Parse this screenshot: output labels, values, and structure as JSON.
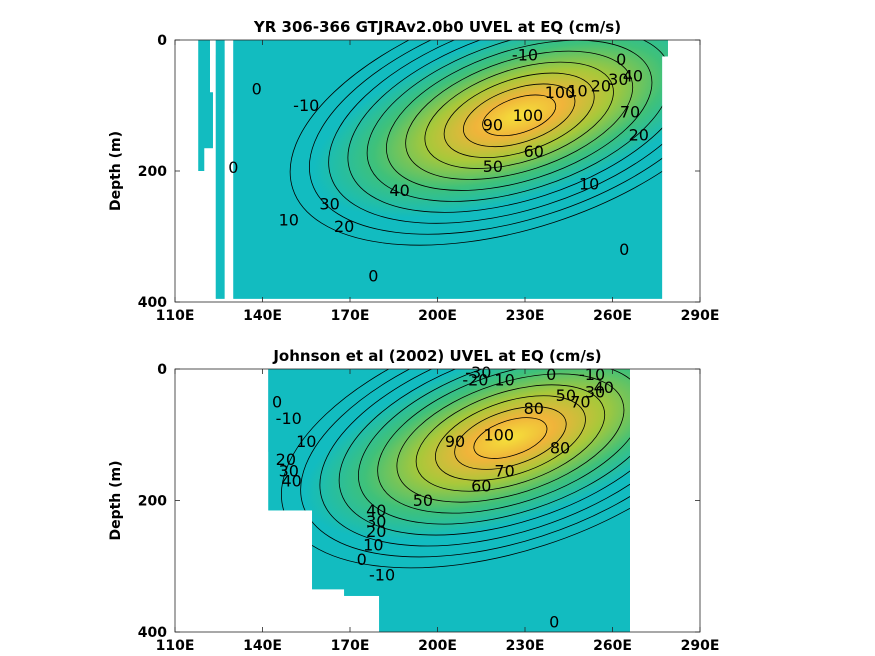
{
  "colors": {
    "background": "#ffffff",
    "colormap": [
      "#1f64d8",
      "#1d9be0",
      "#12bcc0",
      "#3fc17a",
      "#a8c83a",
      "#f0b43a",
      "#f5e13a"
    ]
  },
  "chart_data": [
    {
      "type": "heatmap",
      "title": "YR 306-366 GTJRAv2.0b0 UVEL at EQ (cm/s)",
      "xlabel": "",
      "ylabel": "Depth (m)",
      "xlim": [
        110,
        290
      ],
      "ylim": [
        400,
        0
      ],
      "y_reversed": true,
      "xticks": [
        "110E",
        "140E",
        "170E",
        "200E",
        "230E",
        "260E",
        "290E"
      ],
      "yticks": [
        "0",
        "200",
        "400"
      ],
      "ytick_values": [
        0,
        200,
        400
      ],
      "grid": false,
      "contour_labels": [
        {
          "text": "-10",
          "lon": 230,
          "depth": 23
        },
        {
          "text": "-10",
          "lon": 155,
          "depth": 100
        },
        {
          "text": "0",
          "lon": 263,
          "depth": 30
        },
        {
          "text": "0",
          "lon": 138,
          "depth": 75
        },
        {
          "text": "0",
          "lon": 130,
          "depth": 195
        },
        {
          "text": "0",
          "lon": 178,
          "depth": 360
        },
        {
          "text": "0",
          "lon": 264,
          "depth": 320
        },
        {
          "text": "40",
          "lon": 267,
          "depth": 55
        },
        {
          "text": "20",
          "lon": 256,
          "depth": 70
        },
        {
          "text": "30",
          "lon": 262,
          "depth": 60
        },
        {
          "text": "10",
          "lon": 248,
          "depth": 78
        },
        {
          "text": "100",
          "lon": 242,
          "depth": 80
        },
        {
          "text": "90",
          "lon": 219,
          "depth": 130
        },
        {
          "text": "100",
          "lon": 231,
          "depth": 115
        },
        {
          "text": "70",
          "lon": 266,
          "depth": 110
        },
        {
          "text": "20",
          "lon": 269,
          "depth": 145
        },
        {
          "text": "60",
          "lon": 233,
          "depth": 170
        },
        {
          "text": "50",
          "lon": 219,
          "depth": 193
        },
        {
          "text": "40",
          "lon": 187,
          "depth": 230
        },
        {
          "text": "30",
          "lon": 163,
          "depth": 250
        },
        {
          "text": "20",
          "lon": 168,
          "depth": 285
        },
        {
          "text": "10",
          "lon": 149,
          "depth": 275
        },
        {
          "text": "10",
          "lon": 252,
          "depth": 220
        }
      ],
      "contour_levels": [
        -10,
        0,
        10,
        20,
        30,
        40,
        50,
        60,
        70,
        80,
        90,
        100
      ],
      "core": {
        "lon": 228,
        "depth": 115,
        "max": 100
      }
    },
    {
      "type": "heatmap",
      "title": "Johnson et al (2002) UVEL at EQ (cm/s)",
      "xlabel": "",
      "ylabel": "Depth (m)",
      "xlim": [
        110,
        290
      ],
      "ylim": [
        400,
        0
      ],
      "y_reversed": true,
      "xticks": [
        "110E",
        "140E",
        "170E",
        "200E",
        "230E",
        "260E",
        "290E"
      ],
      "yticks": [
        "0",
        "200",
        "400"
      ],
      "ytick_values": [
        0,
        200,
        400
      ],
      "grid": false,
      "contour_labels": [
        {
          "text": "-30",
          "lon": 214,
          "depth": 5
        },
        {
          "text": "-20",
          "lon": 213,
          "depth": 17
        },
        {
          "text": "10",
          "lon": 223,
          "depth": 17
        },
        {
          "text": "0",
          "lon": 239,
          "depth": 8
        },
        {
          "text": "-10",
          "lon": 253,
          "depth": 8
        },
        {
          "text": "50",
          "lon": 244,
          "depth": 40
        },
        {
          "text": "40",
          "lon": 257,
          "depth": 28
        },
        {
          "text": "30",
          "lon": 254,
          "depth": 35
        },
        {
          "text": "80",
          "lon": 233,
          "depth": 60
        },
        {
          "text": "70",
          "lon": 249,
          "depth": 50
        },
        {
          "text": "90",
          "lon": 206,
          "depth": 110
        },
        {
          "text": "100",
          "lon": 221,
          "depth": 100
        },
        {
          "text": "80",
          "lon": 242,
          "depth": 120
        },
        {
          "text": "70",
          "lon": 223,
          "depth": 155
        },
        {
          "text": "60",
          "lon": 215,
          "depth": 178
        },
        {
          "text": "50",
          "lon": 195,
          "depth": 200
        },
        {
          "text": "0",
          "lon": 145,
          "depth": 50
        },
        {
          "text": "-10",
          "lon": 149,
          "depth": 75
        },
        {
          "text": "10",
          "lon": 155,
          "depth": 110
        },
        {
          "text": "20",
          "lon": 148,
          "depth": 138
        },
        {
          "text": "30",
          "lon": 149,
          "depth": 155
        },
        {
          "text": "40",
          "lon": 150,
          "depth": 170
        },
        {
          "text": "40",
          "lon": 179,
          "depth": 215
        },
        {
          "text": "30",
          "lon": 179,
          "depth": 232
        },
        {
          "text": "20",
          "lon": 179,
          "depth": 247
        },
        {
          "text": "10",
          "lon": 178,
          "depth": 268
        },
        {
          "text": "0",
          "lon": 174,
          "depth": 290
        },
        {
          "text": "-10",
          "lon": 181,
          "depth": 313
        },
        {
          "text": "0",
          "lon": 240,
          "depth": 385
        }
      ],
      "contour_levels": [
        -30,
        -20,
        -10,
        0,
        10,
        20,
        30,
        40,
        50,
        60,
        70,
        80,
        90,
        100
      ],
      "core": {
        "lon": 225,
        "depth": 105,
        "max": 100
      }
    }
  ]
}
